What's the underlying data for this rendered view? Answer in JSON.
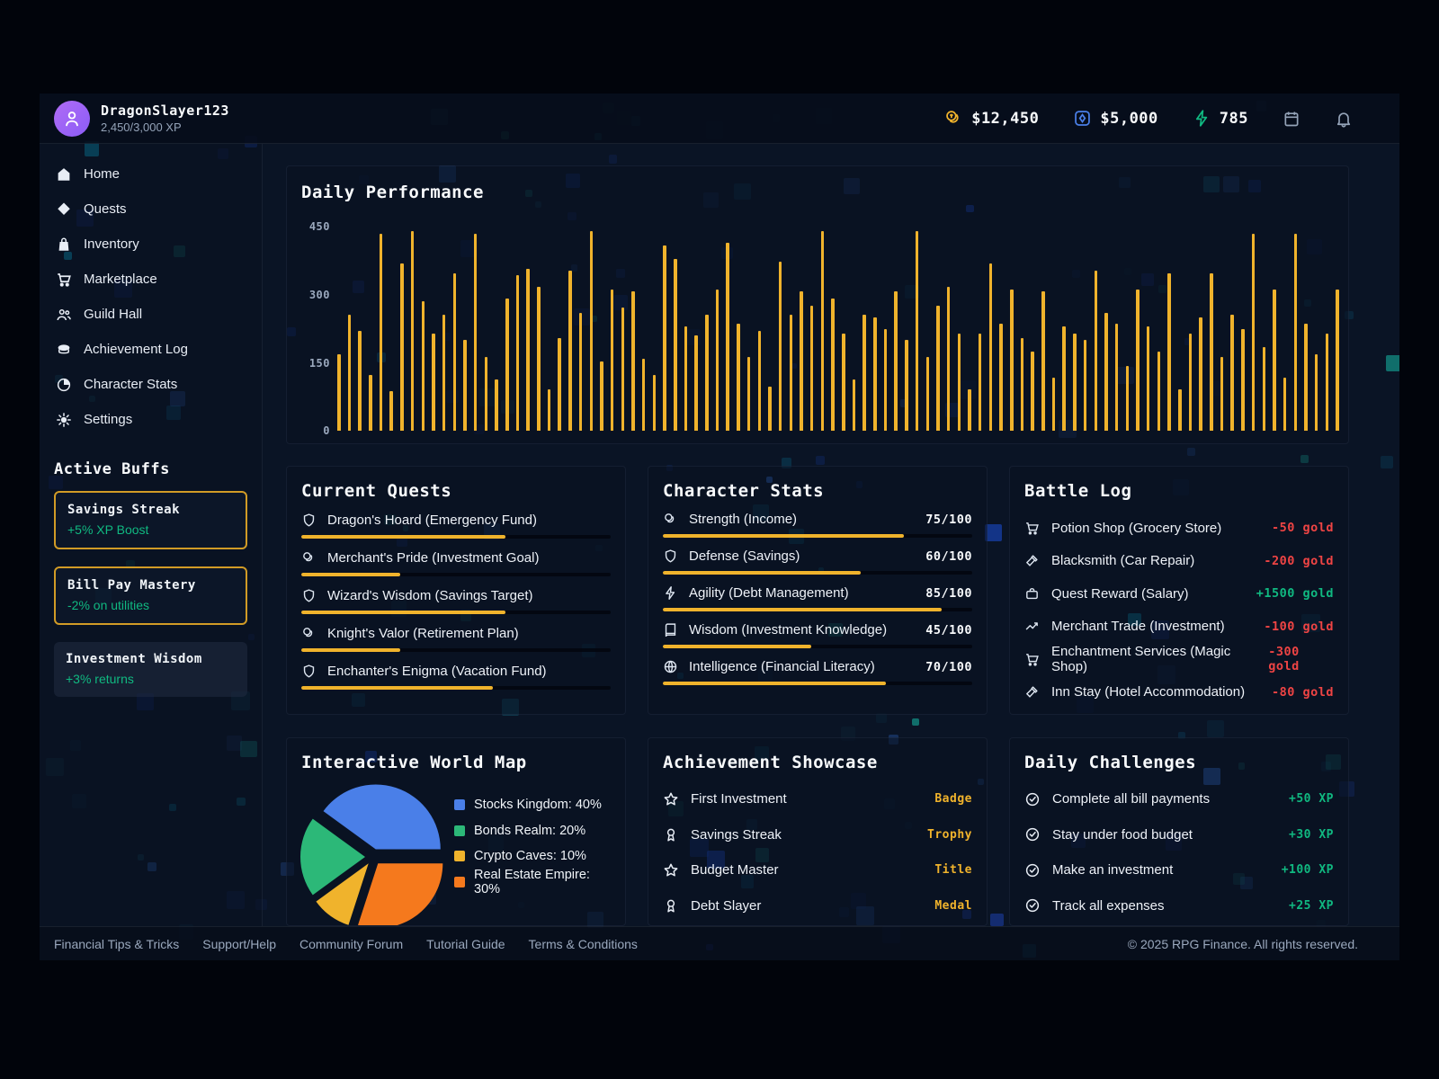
{
  "header": {
    "username": "DragonSlayer123",
    "xp": "2,450/3,000 XP",
    "gold_balance": "$12,450",
    "vault_balance": "$5,000",
    "energy": "785"
  },
  "sidebar": {
    "items": [
      {
        "label": "Home"
      },
      {
        "label": "Quests"
      },
      {
        "label": "Inventory"
      },
      {
        "label": "Marketplace"
      },
      {
        "label": "Guild Hall"
      },
      {
        "label": "Achievement Log"
      },
      {
        "label": "Character Stats"
      },
      {
        "label": "Settings"
      }
    ],
    "buffs_title": "Active Buffs",
    "buffs": [
      {
        "name": "Savings Streak",
        "effect": "+5% XP Boost"
      },
      {
        "name": "Bill Pay Mastery",
        "effect": "-2% on utilities"
      },
      {
        "name": "Investment Wisdom",
        "effect": "+3% returns"
      }
    ]
  },
  "chart_data": [
    {
      "type": "bar",
      "title": "Daily Performance",
      "xlabel": "",
      "ylabel": "",
      "ylim": [
        0,
        450
      ],
      "yticks": [
        0,
        150,
        300,
        450
      ],
      "grid": false,
      "bar_color": "#f0b32c",
      "values": [
        165,
        250,
        215,
        120,
        425,
        85,
        360,
        430,
        280,
        210,
        250,
        340,
        195,
        425,
        160,
        110,
        285,
        335,
        350,
        310,
        90,
        200,
        345,
        255,
        430,
        150,
        305,
        265,
        300,
        155,
        120,
        400,
        370,
        225,
        205,
        250,
        305,
        405,
        230,
        160,
        215,
        95,
        365,
        250,
        300,
        270,
        430,
        285,
        210,
        110,
        250,
        245,
        220,
        300,
        195,
        430,
        160,
        270,
        310,
        210,
        90,
        210,
        360,
        230,
        305,
        200,
        170,
        300,
        115,
        225,
        210,
        195,
        345,
        255,
        230,
        140,
        305,
        225,
        170,
        340,
        90,
        210,
        245,
        340,
        160,
        250,
        220,
        425,
        180,
        305,
        115,
        425,
        230,
        165,
        210,
        305
      ]
    },
    {
      "type": "pie",
      "title": "Interactive World Map",
      "start_angle": 144,
      "slices": [
        {
          "label": "Stocks Kingdom",
          "value": 40,
          "color": "#4a7fe8"
        },
        {
          "label": "Real Estate Empire",
          "value": 30,
          "color": "#f5791d"
        },
        {
          "label": "Crypto Caves",
          "value": 10,
          "color": "#f0b32c"
        },
        {
          "label": "Bonds Realm",
          "value": 20,
          "color": "#2cb878"
        }
      ]
    }
  ],
  "quests": {
    "title": "Current Quests",
    "items": [
      {
        "name": "Dragon's Hoard (Emergency Fund)",
        "icon": "shield",
        "progress": 66
      },
      {
        "name": "Merchant's Pride (Investment Goal)",
        "icon": "coins",
        "progress": 32
      },
      {
        "name": "Wizard's Wisdom (Savings Target)",
        "icon": "shield",
        "progress": 66
      },
      {
        "name": "Knight's Valor (Retirement Plan)",
        "icon": "coins",
        "progress": 32
      },
      {
        "name": "Enchanter's Enigma (Vacation Fund)",
        "icon": "shield",
        "progress": 62
      }
    ]
  },
  "stats": {
    "title": "Character Stats",
    "items": [
      {
        "label": "Strength (Income)",
        "icon": "coins",
        "value": "75/100",
        "pct": 78
      },
      {
        "label": "Defense (Savings)",
        "icon": "shield",
        "value": "60/100",
        "pct": 64
      },
      {
        "label": "Agility (Debt Management)",
        "icon": "zap",
        "value": "85/100",
        "pct": 90
      },
      {
        "label": "Wisdom (Investment Knowledge)",
        "icon": "book",
        "value": "45/100",
        "pct": 48
      },
      {
        "label": "Intelligence (Financial Literacy)",
        "icon": "globe",
        "value": "70/100",
        "pct": 72
      }
    ]
  },
  "battle_log": {
    "title": "Battle Log",
    "items": [
      {
        "label": "Potion Shop (Grocery Store)",
        "icon": "cart",
        "amount": "-50 gold"
      },
      {
        "label": "Blacksmith (Car Repair)",
        "icon": "hammer",
        "amount": "-200 gold"
      },
      {
        "label": "Quest Reward (Salary)",
        "icon": "briefcase",
        "amount": "+1500 gold"
      },
      {
        "label": "Merchant Trade (Investment)",
        "icon": "trend",
        "amount": "-100 gold"
      },
      {
        "label": "Enchantment Services (Magic Shop)",
        "icon": "cart",
        "amount": "-300 gold"
      },
      {
        "label": "Inn Stay (Hotel Accommodation)",
        "icon": "hammer",
        "amount": "-80 gold"
      }
    ]
  },
  "world_map": {
    "title": "Interactive World Map",
    "legend": [
      {
        "label": "Stocks Kingdom: 40%",
        "color": "#4a7fe8"
      },
      {
        "label": "Bonds Realm: 20%",
        "color": "#2cb878"
      },
      {
        "label": "Crypto Caves: 10%",
        "color": "#f0b32c"
      },
      {
        "label": "Real Estate Empire: 30%",
        "color": "#f5791d"
      }
    ]
  },
  "achievements": {
    "title": "Achievement Showcase",
    "items": [
      {
        "name": "First Investment",
        "icon": "star",
        "type": "Badge"
      },
      {
        "name": "Savings Streak",
        "icon": "award",
        "type": "Trophy"
      },
      {
        "name": "Budget Master",
        "icon": "star",
        "type": "Title"
      },
      {
        "name": "Debt Slayer",
        "icon": "award",
        "type": "Medal"
      }
    ]
  },
  "challenges": {
    "title": "Daily Challenges",
    "items": [
      {
        "name": "Complete all bill payments",
        "reward": "+50 XP"
      },
      {
        "name": "Stay under food budget",
        "reward": "+30 XP"
      },
      {
        "name": "Make an investment",
        "reward": "+100 XP"
      },
      {
        "name": "Track all expenses",
        "reward": "+25 XP"
      }
    ]
  },
  "footer": {
    "links": [
      {
        "label": "Financial Tips & Tricks"
      },
      {
        "label": "Support/Help"
      },
      {
        "label": "Community Forum"
      },
      {
        "label": "Tutorial Guide"
      },
      {
        "label": "Terms & Conditions"
      }
    ],
    "copyright": "© 2025 RPG Finance. All rights reserved."
  },
  "colors": {
    "accent_gold": "#f0b32c",
    "positive": "#10b981",
    "negative": "#ef4444"
  }
}
